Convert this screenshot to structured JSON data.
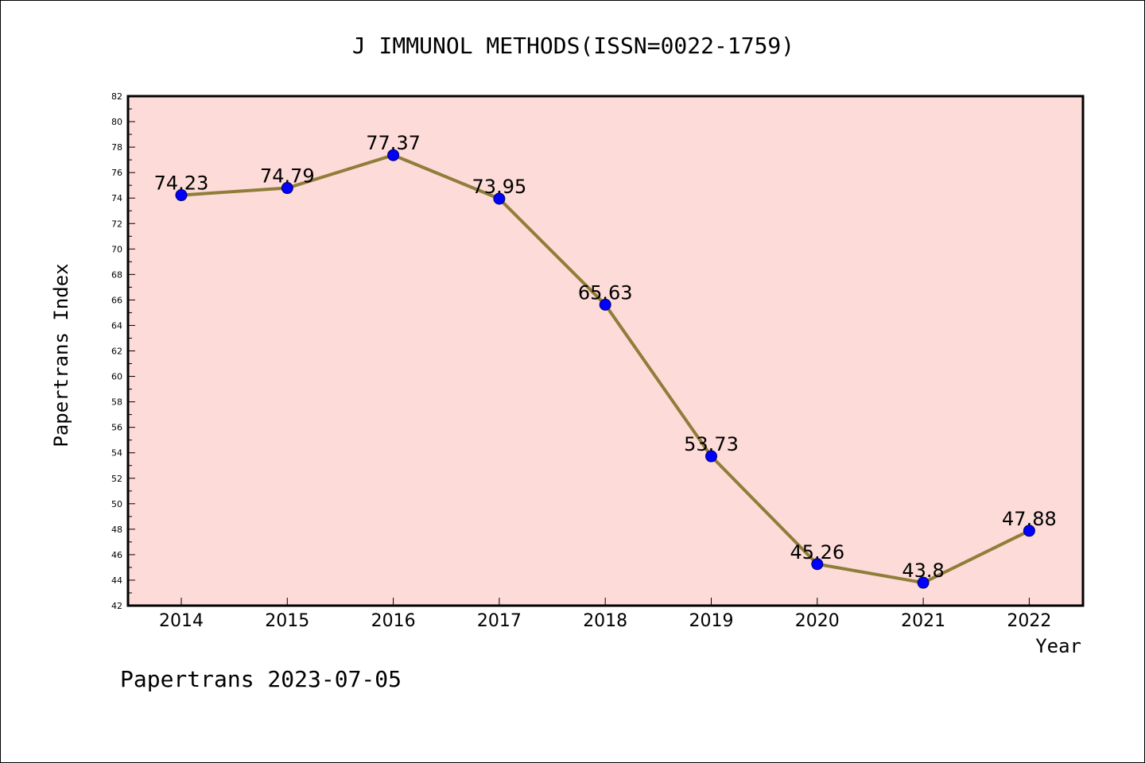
{
  "colors": {
    "plot_background": "#fddbd8",
    "line": "#8f7d3a",
    "marker": "#0000ff",
    "axes": "#000000"
  },
  "footer": "Papertrans 2023-07-05",
  "chart_data": {
    "type": "line",
    "title": "J IMMUNOL METHODS(ISSN=0022-1759)",
    "xlabel": "Year",
    "ylabel": "Papertrans Index",
    "categories": [
      "2014",
      "2015",
      "2016",
      "2017",
      "2018",
      "2019",
      "2020",
      "2021",
      "2022"
    ],
    "series": [
      {
        "values": [
          74.23,
          74.79,
          77.37,
          73.95,
          65.63,
          53.73,
          45.26,
          43.8,
          47.88
        ],
        "labels": [
          "74.23",
          "74.79",
          "77.37",
          "73.95",
          "65.63",
          "53.73",
          "45.26",
          "43.8",
          "47.88"
        ]
      }
    ],
    "ylim": [
      42,
      82
    ],
    "yticks": [
      "42",
      "44",
      "46",
      "48",
      "50",
      "52",
      "54",
      "56",
      "58",
      "60",
      "62",
      "64",
      "66",
      "68",
      "70",
      "72",
      "74",
      "76",
      "78",
      "80",
      "82"
    ],
    "grid": false,
    "legend": "none",
    "markers": "circle"
  }
}
